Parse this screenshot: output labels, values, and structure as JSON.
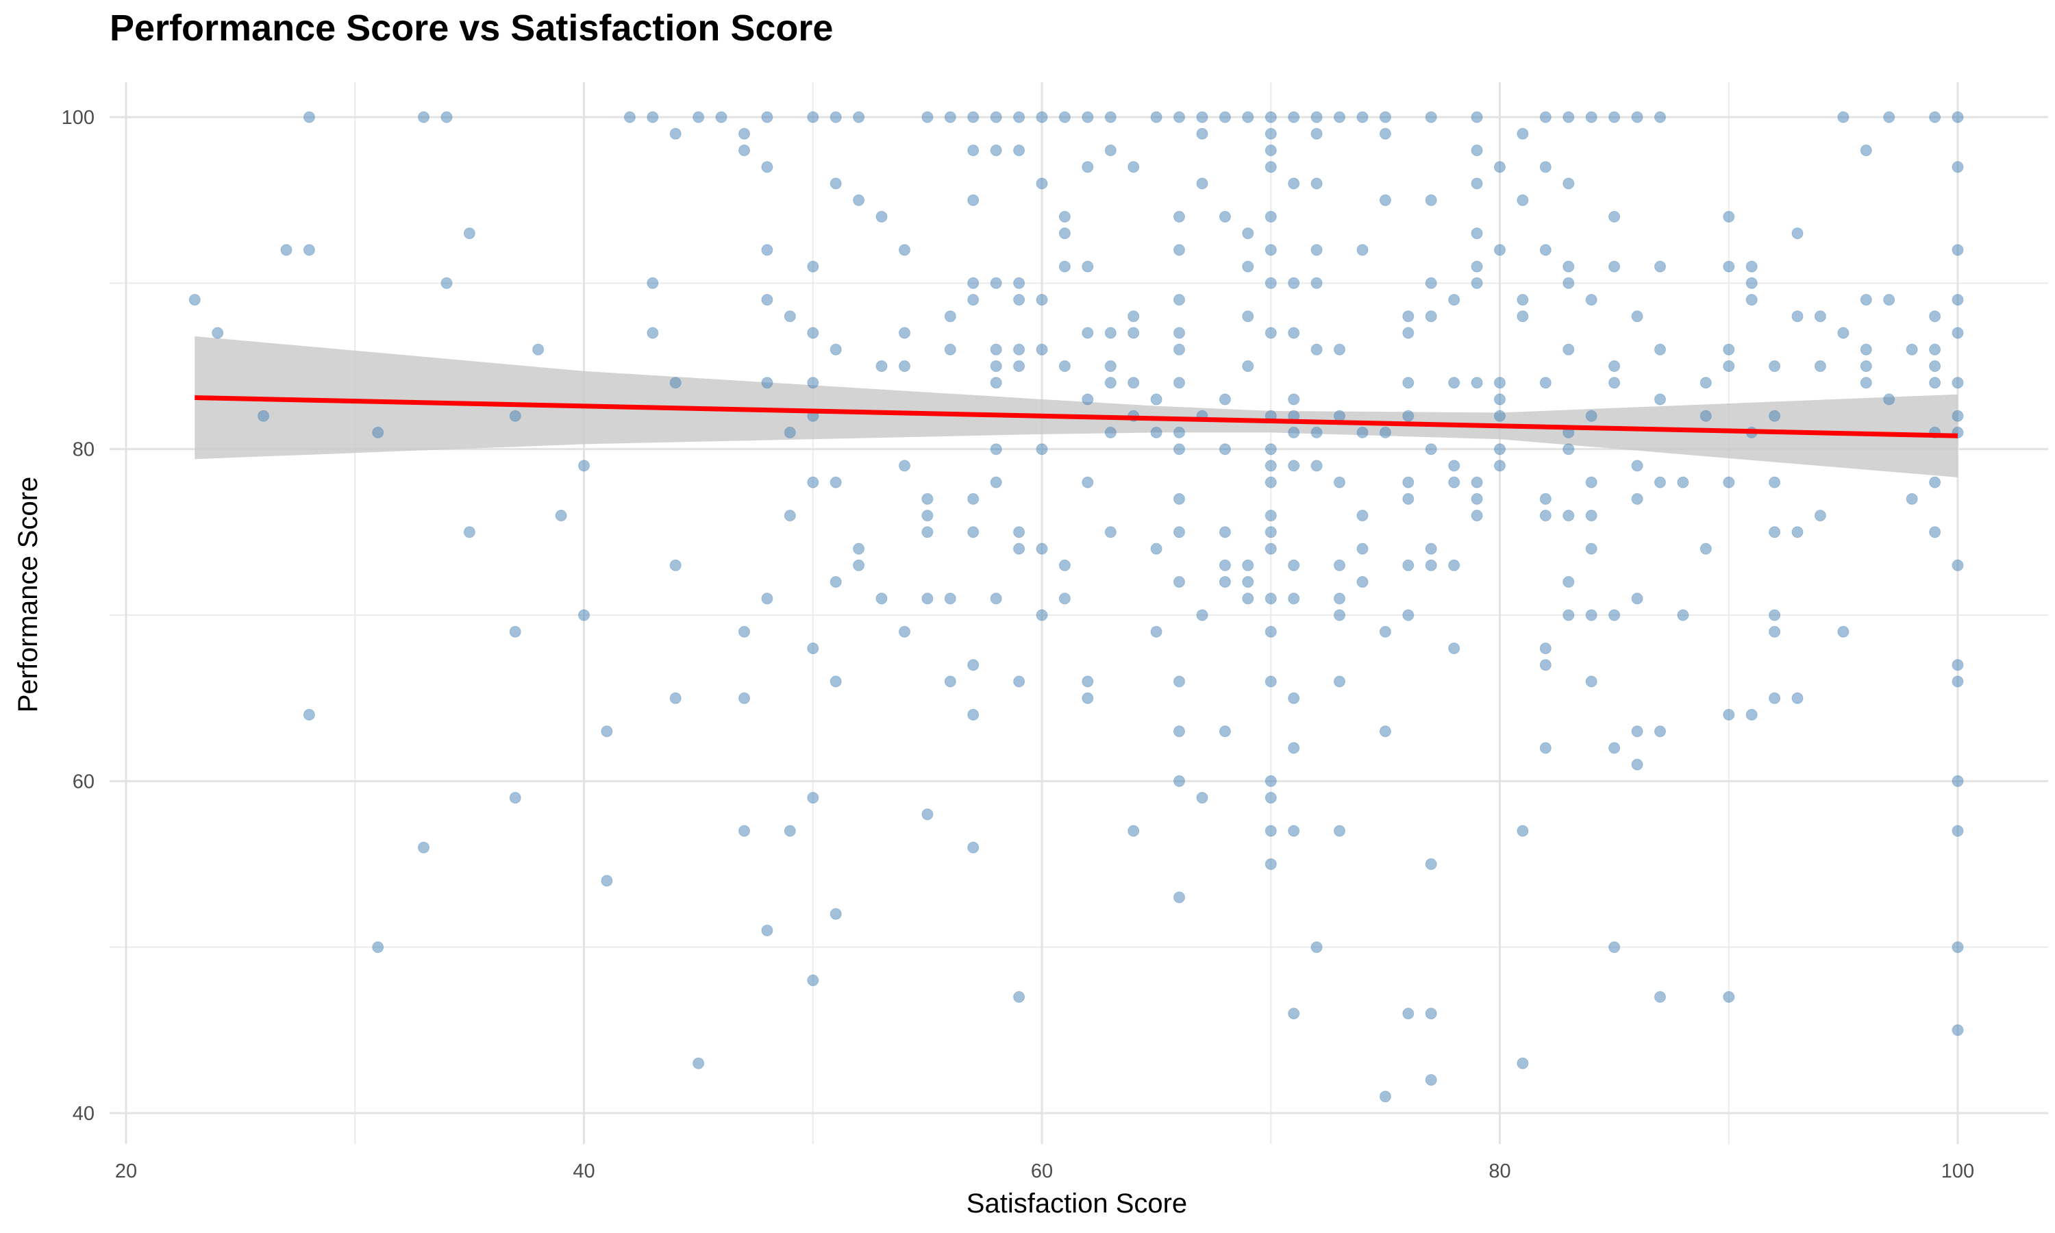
{
  "chart_data": {
    "type": "scatter",
    "title": "Performance Score vs Satisfaction Score",
    "xlabel": "Satisfaction Score",
    "ylabel": "Performance Score",
    "xlim": [
      18,
      103
    ],
    "ylim": [
      39.5,
      102.5
    ],
    "x_ticks": [
      20,
      40,
      60,
      80,
      100
    ],
    "y_ticks": [
      40,
      60,
      80,
      100
    ],
    "grid": true,
    "point_color": "#4682B4",
    "point_opacity": 0.5,
    "trend_line": {
      "method": "linear regression",
      "color": "#FF0000",
      "start": [
        23,
        83.1
      ],
      "end": [
        100,
        80.8
      ],
      "confidence_band": {
        "color": "#C8C8C8",
        "x": [
          23,
          40,
          60,
          65,
          70,
          80,
          100
        ],
        "lower": [
          79.4,
          80.3,
          80.9,
          81.0,
          81.0,
          80.6,
          78.3
        ],
        "upper": [
          86.8,
          84.7,
          83.0,
          82.6,
          82.3,
          82.2,
          83.3
        ]
      }
    },
    "points": [
      [
        23,
        89
      ],
      [
        24,
        87
      ],
      [
        26,
        82
      ],
      [
        27,
        92
      ],
      [
        28,
        100
      ],
      [
        28,
        92
      ],
      [
        28,
        64
      ],
      [
        31,
        81
      ],
      [
        31,
        50
      ],
      [
        33,
        100
      ],
      [
        33,
        56
      ],
      [
        34,
        100
      ],
      [
        34,
        90
      ],
      [
        35,
        93
      ],
      [
        35,
        75
      ],
      [
        37,
        82
      ],
      [
        37,
        69
      ],
      [
        37,
        59
      ],
      [
        38,
        86
      ],
      [
        39,
        76
      ],
      [
        40,
        79
      ],
      [
        40,
        70
      ],
      [
        41,
        63
      ],
      [
        41,
        54
      ],
      [
        42,
        100
      ],
      [
        43,
        100
      ],
      [
        43,
        90
      ],
      [
        43,
        87
      ],
      [
        44,
        99
      ],
      [
        44,
        84
      ],
      [
        44,
        73
      ],
      [
        44,
        65
      ],
      [
        45,
        100
      ],
      [
        45,
        43
      ],
      [
        46,
        100
      ],
      [
        47,
        99
      ],
      [
        47,
        98
      ],
      [
        47,
        69
      ],
      [
        47,
        65
      ],
      [
        47,
        57
      ],
      [
        48,
        100
      ],
      [
        48,
        97
      ],
      [
        48,
        92
      ],
      [
        48,
        89
      ],
      [
        48,
        84
      ],
      [
        48,
        71
      ],
      [
        48,
        51
      ],
      [
        49,
        88
      ],
      [
        49,
        81
      ],
      [
        49,
        76
      ],
      [
        49,
        57
      ],
      [
        50,
        100
      ],
      [
        50,
        91
      ],
      [
        50,
        87
      ],
      [
        50,
        84
      ],
      [
        50,
        82
      ],
      [
        50,
        78
      ],
      [
        50,
        68
      ],
      [
        50,
        59
      ],
      [
        50,
        48
      ],
      [
        51,
        100
      ],
      [
        51,
        96
      ],
      [
        51,
        86
      ],
      [
        51,
        78
      ],
      [
        51,
        72
      ],
      [
        51,
        66
      ],
      [
        51,
        52
      ],
      [
        52,
        100
      ],
      [
        52,
        95
      ],
      [
        52,
        74
      ],
      [
        52,
        73
      ],
      [
        53,
        94
      ],
      [
        53,
        85
      ],
      [
        53,
        71
      ],
      [
        54,
        92
      ],
      [
        54,
        87
      ],
      [
        54,
        85
      ],
      [
        54,
        79
      ],
      [
        54,
        69
      ],
      [
        55,
        100
      ],
      [
        55,
        77
      ],
      [
        55,
        76
      ],
      [
        55,
        75
      ],
      [
        55,
        71
      ],
      [
        55,
        58
      ],
      [
        56,
        100
      ],
      [
        56,
        88
      ],
      [
        56,
        86
      ],
      [
        56,
        71
      ],
      [
        56,
        66
      ],
      [
        57,
        100
      ],
      [
        57,
        98
      ],
      [
        57,
        95
      ],
      [
        57,
        90
      ],
      [
        57,
        89
      ],
      [
        57,
        77
      ],
      [
        57,
        75
      ],
      [
        57,
        67
      ],
      [
        57,
        64
      ],
      [
        57,
        56
      ],
      [
        58,
        100
      ],
      [
        58,
        98
      ],
      [
        58,
        90
      ],
      [
        58,
        86
      ],
      [
        58,
        85
      ],
      [
        58,
        84
      ],
      [
        58,
        80
      ],
      [
        58,
        78
      ],
      [
        58,
        71
      ],
      [
        59,
        100
      ],
      [
        59,
        98
      ],
      [
        59,
        90
      ],
      [
        59,
        89
      ],
      [
        59,
        86
      ],
      [
        59,
        85
      ],
      [
        59,
        75
      ],
      [
        59,
        74
      ],
      [
        59,
        66
      ],
      [
        59,
        47
      ],
      [
        60,
        100
      ],
      [
        60,
        96
      ],
      [
        60,
        89
      ],
      [
        60,
        86
      ],
      [
        60,
        80
      ],
      [
        60,
        74
      ],
      [
        60,
        70
      ],
      [
        61,
        100
      ],
      [
        61,
        94
      ],
      [
        61,
        93
      ],
      [
        61,
        91
      ],
      [
        61,
        85
      ],
      [
        61,
        73
      ],
      [
        61,
        71
      ],
      [
        62,
        100
      ],
      [
        62,
        97
      ],
      [
        62,
        91
      ],
      [
        62,
        87
      ],
      [
        62,
        83
      ],
      [
        62,
        78
      ],
      [
        62,
        66
      ],
      [
        62,
        65
      ],
      [
        63,
        100
      ],
      [
        63,
        98
      ],
      [
        63,
        87
      ],
      [
        63,
        85
      ],
      [
        63,
        84
      ],
      [
        63,
        81
      ],
      [
        63,
        75
      ],
      [
        64,
        97
      ],
      [
        64,
        88
      ],
      [
        64,
        87
      ],
      [
        64,
        84
      ],
      [
        64,
        82
      ],
      [
        64,
        57
      ],
      [
        65,
        100
      ],
      [
        65,
        83
      ],
      [
        65,
        81
      ],
      [
        65,
        74
      ],
      [
        65,
        69
      ],
      [
        66,
        100
      ],
      [
        66,
        94
      ],
      [
        66,
        92
      ],
      [
        66,
        89
      ],
      [
        66,
        87
      ],
      [
        66,
        86
      ],
      [
        66,
        84
      ],
      [
        66,
        81
      ],
      [
        66,
        80
      ],
      [
        66,
        77
      ],
      [
        66,
        75
      ],
      [
        66,
        72
      ],
      [
        66,
        66
      ],
      [
        66,
        63
      ],
      [
        66,
        60
      ],
      [
        66,
        53
      ],
      [
        67,
        100
      ],
      [
        67,
        99
      ],
      [
        67,
        96
      ],
      [
        67,
        82
      ],
      [
        67,
        70
      ],
      [
        67,
        59
      ],
      [
        68,
        100
      ],
      [
        68,
        94
      ],
      [
        68,
        83
      ],
      [
        68,
        80
      ],
      [
        68,
        75
      ],
      [
        68,
        73
      ],
      [
        68,
        72
      ],
      [
        68,
        63
      ],
      [
        69,
        100
      ],
      [
        69,
        93
      ],
      [
        69,
        91
      ],
      [
        69,
        88
      ],
      [
        69,
        85
      ],
      [
        69,
        73
      ],
      [
        69,
        72
      ],
      [
        69,
        71
      ],
      [
        70,
        100
      ],
      [
        70,
        99
      ],
      [
        70,
        98
      ],
      [
        70,
        97
      ],
      [
        70,
        94
      ],
      [
        70,
        92
      ],
      [
        70,
        90
      ],
      [
        70,
        87
      ],
      [
        70,
        82
      ],
      [
        70,
        80
      ],
      [
        70,
        79
      ],
      [
        70,
        78
      ],
      [
        70,
        76
      ],
      [
        70,
        75
      ],
      [
        70,
        74
      ],
      [
        70,
        71
      ],
      [
        70,
        69
      ],
      [
        70,
        66
      ],
      [
        70,
        60
      ],
      [
        70,
        59
      ],
      [
        70,
        57
      ],
      [
        70,
        55
      ],
      [
        71,
        100
      ],
      [
        71,
        96
      ],
      [
        71,
        90
      ],
      [
        71,
        87
      ],
      [
        71,
        83
      ],
      [
        71,
        82
      ],
      [
        71,
        81
      ],
      [
        71,
        79
      ],
      [
        71,
        73
      ],
      [
        71,
        71
      ],
      [
        71,
        65
      ],
      [
        71,
        62
      ],
      [
        71,
        57
      ],
      [
        71,
        46
      ],
      [
        72,
        100
      ],
      [
        72,
        99
      ],
      [
        72,
        96
      ],
      [
        72,
        92
      ],
      [
        72,
        90
      ],
      [
        72,
        86
      ],
      [
        72,
        81
      ],
      [
        72,
        79
      ],
      [
        72,
        50
      ],
      [
        73,
        100
      ],
      [
        73,
        86
      ],
      [
        73,
        82
      ],
      [
        73,
        78
      ],
      [
        73,
        73
      ],
      [
        73,
        71
      ],
      [
        73,
        70
      ],
      [
        73,
        66
      ],
      [
        73,
        57
      ],
      [
        74,
        100
      ],
      [
        74,
        92
      ],
      [
        74,
        81
      ],
      [
        74,
        76
      ],
      [
        74,
        74
      ],
      [
        74,
        72
      ],
      [
        75,
        100
      ],
      [
        75,
        99
      ],
      [
        75,
        95
      ],
      [
        75,
        81
      ],
      [
        75,
        69
      ],
      [
        75,
        63
      ],
      [
        75,
        41
      ],
      [
        76,
        88
      ],
      [
        76,
        87
      ],
      [
        76,
        84
      ],
      [
        76,
        82
      ],
      [
        76,
        78
      ],
      [
        76,
        77
      ],
      [
        76,
        73
      ],
      [
        76,
        70
      ],
      [
        76,
        46
      ],
      [
        77,
        100
      ],
      [
        77,
        95
      ],
      [
        77,
        90
      ],
      [
        77,
        88
      ],
      [
        77,
        80
      ],
      [
        77,
        74
      ],
      [
        77,
        73
      ],
      [
        77,
        55
      ],
      [
        77,
        46
      ],
      [
        77,
        42
      ],
      [
        78,
        89
      ],
      [
        78,
        84
      ],
      [
        78,
        79
      ],
      [
        78,
        78
      ],
      [
        78,
        73
      ],
      [
        78,
        68
      ],
      [
        79,
        100
      ],
      [
        79,
        98
      ],
      [
        79,
        96
      ],
      [
        79,
        93
      ],
      [
        79,
        91
      ],
      [
        79,
        90
      ],
      [
        79,
        84
      ],
      [
        79,
        78
      ],
      [
        79,
        77
      ],
      [
        79,
        76
      ],
      [
        80,
        97
      ],
      [
        80,
        92
      ],
      [
        80,
        84
      ],
      [
        80,
        83
      ],
      [
        80,
        82
      ],
      [
        80,
        80
      ],
      [
        80,
        79
      ],
      [
        81,
        99
      ],
      [
        81,
        95
      ],
      [
        81,
        89
      ],
      [
        81,
        88
      ],
      [
        81,
        57
      ],
      [
        81,
        43
      ],
      [
        82,
        100
      ],
      [
        82,
        97
      ],
      [
        82,
        92
      ],
      [
        82,
        84
      ],
      [
        82,
        77
      ],
      [
        82,
        76
      ],
      [
        82,
        68
      ],
      [
        82,
        67
      ],
      [
        82,
        62
      ],
      [
        83,
        100
      ],
      [
        83,
        96
      ],
      [
        83,
        91
      ],
      [
        83,
        90
      ],
      [
        83,
        86
      ],
      [
        83,
        81
      ],
      [
        83,
        80
      ],
      [
        83,
        76
      ],
      [
        83,
        72
      ],
      [
        83,
        70
      ],
      [
        84,
        100
      ],
      [
        84,
        89
      ],
      [
        84,
        82
      ],
      [
        84,
        78
      ],
      [
        84,
        76
      ],
      [
        84,
        74
      ],
      [
        84,
        70
      ],
      [
        84,
        66
      ],
      [
        85,
        100
      ],
      [
        85,
        94
      ],
      [
        85,
        91
      ],
      [
        85,
        85
      ],
      [
        85,
        84
      ],
      [
        85,
        70
      ],
      [
        85,
        62
      ],
      [
        85,
        50
      ],
      [
        86,
        100
      ],
      [
        86,
        88
      ],
      [
        86,
        79
      ],
      [
        86,
        77
      ],
      [
        86,
        71
      ],
      [
        86,
        63
      ],
      [
        86,
        61
      ],
      [
        87,
        100
      ],
      [
        87,
        91
      ],
      [
        87,
        86
      ],
      [
        87,
        83
      ],
      [
        87,
        78
      ],
      [
        87,
        63
      ],
      [
        87,
        47
      ],
      [
        88,
        78
      ],
      [
        88,
        70
      ],
      [
        89,
        84
      ],
      [
        89,
        82
      ],
      [
        89,
        74
      ],
      [
        90,
        94
      ],
      [
        90,
        91
      ],
      [
        90,
        86
      ],
      [
        90,
        85
      ],
      [
        90,
        78
      ],
      [
        90,
        64
      ],
      [
        90,
        47
      ],
      [
        91,
        91
      ],
      [
        91,
        90
      ],
      [
        91,
        89
      ],
      [
        91,
        81
      ],
      [
        91,
        64
      ],
      [
        92,
        85
      ],
      [
        92,
        82
      ],
      [
        92,
        78
      ],
      [
        92,
        75
      ],
      [
        92,
        70
      ],
      [
        92,
        69
      ],
      [
        92,
        65
      ],
      [
        93,
        93
      ],
      [
        93,
        88
      ],
      [
        93,
        75
      ],
      [
        93,
        65
      ],
      [
        94,
        88
      ],
      [
        94,
        85
      ],
      [
        94,
        76
      ],
      [
        95,
        100
      ],
      [
        95,
        87
      ],
      [
        95,
        69
      ],
      [
        96,
        98
      ],
      [
        96,
        89
      ],
      [
        96,
        86
      ],
      [
        96,
        85
      ],
      [
        96,
        84
      ],
      [
        97,
        100
      ],
      [
        97,
        89
      ],
      [
        97,
        83
      ],
      [
        98,
        86
      ],
      [
        98,
        77
      ],
      [
        99,
        100
      ],
      [
        99,
        88
      ],
      [
        99,
        86
      ],
      [
        99,
        85
      ],
      [
        99,
        84
      ],
      [
        99,
        81
      ],
      [
        99,
        78
      ],
      [
        99,
        75
      ],
      [
        100,
        100
      ],
      [
        100,
        97
      ],
      [
        100,
        92
      ],
      [
        100,
        89
      ],
      [
        100,
        87
      ],
      [
        100,
        84
      ],
      [
        100,
        82
      ],
      [
        100,
        81
      ],
      [
        100,
        73
      ],
      [
        100,
        67
      ],
      [
        100,
        66
      ],
      [
        100,
        60
      ],
      [
        100,
        57
      ],
      [
        100,
        50
      ],
      [
        100,
        45
      ]
    ]
  }
}
